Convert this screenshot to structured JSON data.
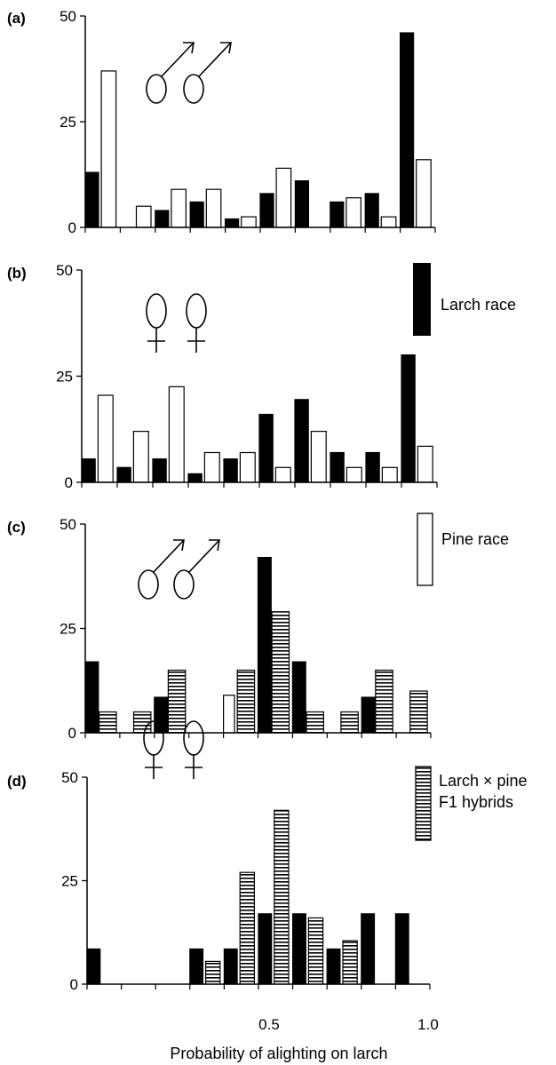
{
  "colors": {
    "larch": "#000000",
    "pine": "#ffffff",
    "hybrid_stripe": "#000000"
  },
  "x_tick_labels": [
    "0.5",
    "1.0"
  ],
  "xlabel": "Probability of alighting on larch",
  "legend": {
    "larch": "Larch race",
    "pine": "Pine race",
    "hybrid_line1": "Larch × pine",
    "hybrid_line2": "F1 hybrids"
  },
  "chart_data": [
    {
      "type": "bar",
      "panel": "(a)",
      "symbol": "male",
      "ylim": [
        0,
        50
      ],
      "yticks": [
        "0",
        "25",
        "50"
      ],
      "xlim": [
        0,
        1
      ],
      "bin_width": 0.1,
      "series": [
        {
          "key": "larch",
          "values": [
            13,
            0,
            4,
            6,
            2,
            8,
            11,
            6,
            8,
            46
          ]
        },
        {
          "key": "pine",
          "values": [
            37,
            5,
            9,
            9,
            2.5,
            14,
            0,
            7,
            2.5,
            16
          ]
        }
      ]
    },
    {
      "type": "bar",
      "panel": "(b)",
      "symbol": "female",
      "ylim": [
        0,
        50
      ],
      "yticks": [
        "0",
        "25",
        "50"
      ],
      "xlim": [
        0,
        1
      ],
      "bin_width": 0.1,
      "series": [
        {
          "key": "larch",
          "values": [
            5.5,
            3.5,
            5.5,
            2,
            5.5,
            16,
            19.5,
            7,
            7,
            30
          ]
        },
        {
          "key": "pine",
          "values": [
            20.5,
            12,
            22.5,
            7,
            7,
            3.5,
            12,
            3.5,
            3.5,
            8.5
          ]
        }
      ]
    },
    {
      "type": "bar",
      "panel": "(c)",
      "symbol": "male",
      "ylim": [
        0,
        50
      ],
      "yticks": [
        "0",
        "25",
        "50"
      ],
      "xlim": [
        0,
        1
      ],
      "bin_width": 0.1,
      "series": [
        {
          "key": "larch",
          "values": [
            17,
            0,
            8.5,
            0,
            0,
            42,
            17,
            0,
            8.5,
            0
          ]
        },
        {
          "key": "hybrid",
          "values": [
            5,
            5,
            15,
            0,
            15,
            29,
            5,
            5,
            15,
            10
          ]
        },
        {
          "key": "pine",
          "values": [
            0,
            0,
            0,
            0,
            9,
            0,
            0,
            0,
            0,
            0
          ]
        }
      ]
    },
    {
      "type": "bar",
      "panel": "(d)",
      "symbol": "female",
      "ylim": [
        0,
        50
      ],
      "yticks": [
        "0",
        "25",
        "50"
      ],
      "xlim": [
        0,
        1
      ],
      "bin_width": 0.1,
      "series": [
        {
          "key": "larch",
          "values": [
            8.5,
            0,
            0,
            8.5,
            8.5,
            17,
            17,
            8.5,
            17,
            17
          ]
        },
        {
          "key": "hybrid",
          "values": [
            0,
            0,
            0,
            5.5,
            27,
            42,
            16,
            10.5,
            0,
            0
          ]
        }
      ]
    }
  ]
}
